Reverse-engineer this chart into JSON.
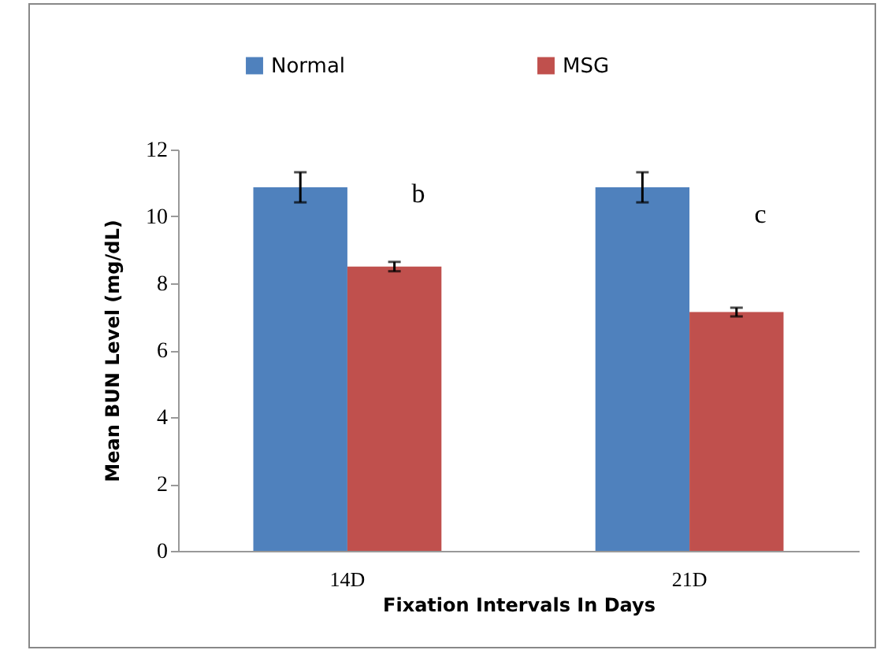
{
  "chart_data": {
    "type": "bar",
    "xlabel": "Fixation Intervals In Days",
    "ylabel": "Mean BUN Level (mg/dL)",
    "categories": [
      "14D",
      "21D"
    ],
    "series": [
      {
        "name": "Normal",
        "color": "#4f81bd",
        "values": [
          10.87,
          10.87
        ],
        "errors": [
          0.45,
          0.45
        ]
      },
      {
        "name": "MSG",
        "color": "#c0504d",
        "values": [
          8.5,
          7.14
        ],
        "errors": [
          0.14,
          0.13
        ]
      }
    ],
    "ylim": [
      0,
      12
    ],
    "yticks": [
      0,
      2,
      4,
      6,
      8,
      10,
      12
    ],
    "grid": false,
    "legend": "top",
    "annotations": [
      {
        "text": "b",
        "x": "14D",
        "y": 10.67
      },
      {
        "text": "c",
        "x": "21D",
        "y": 10.04
      }
    ]
  }
}
